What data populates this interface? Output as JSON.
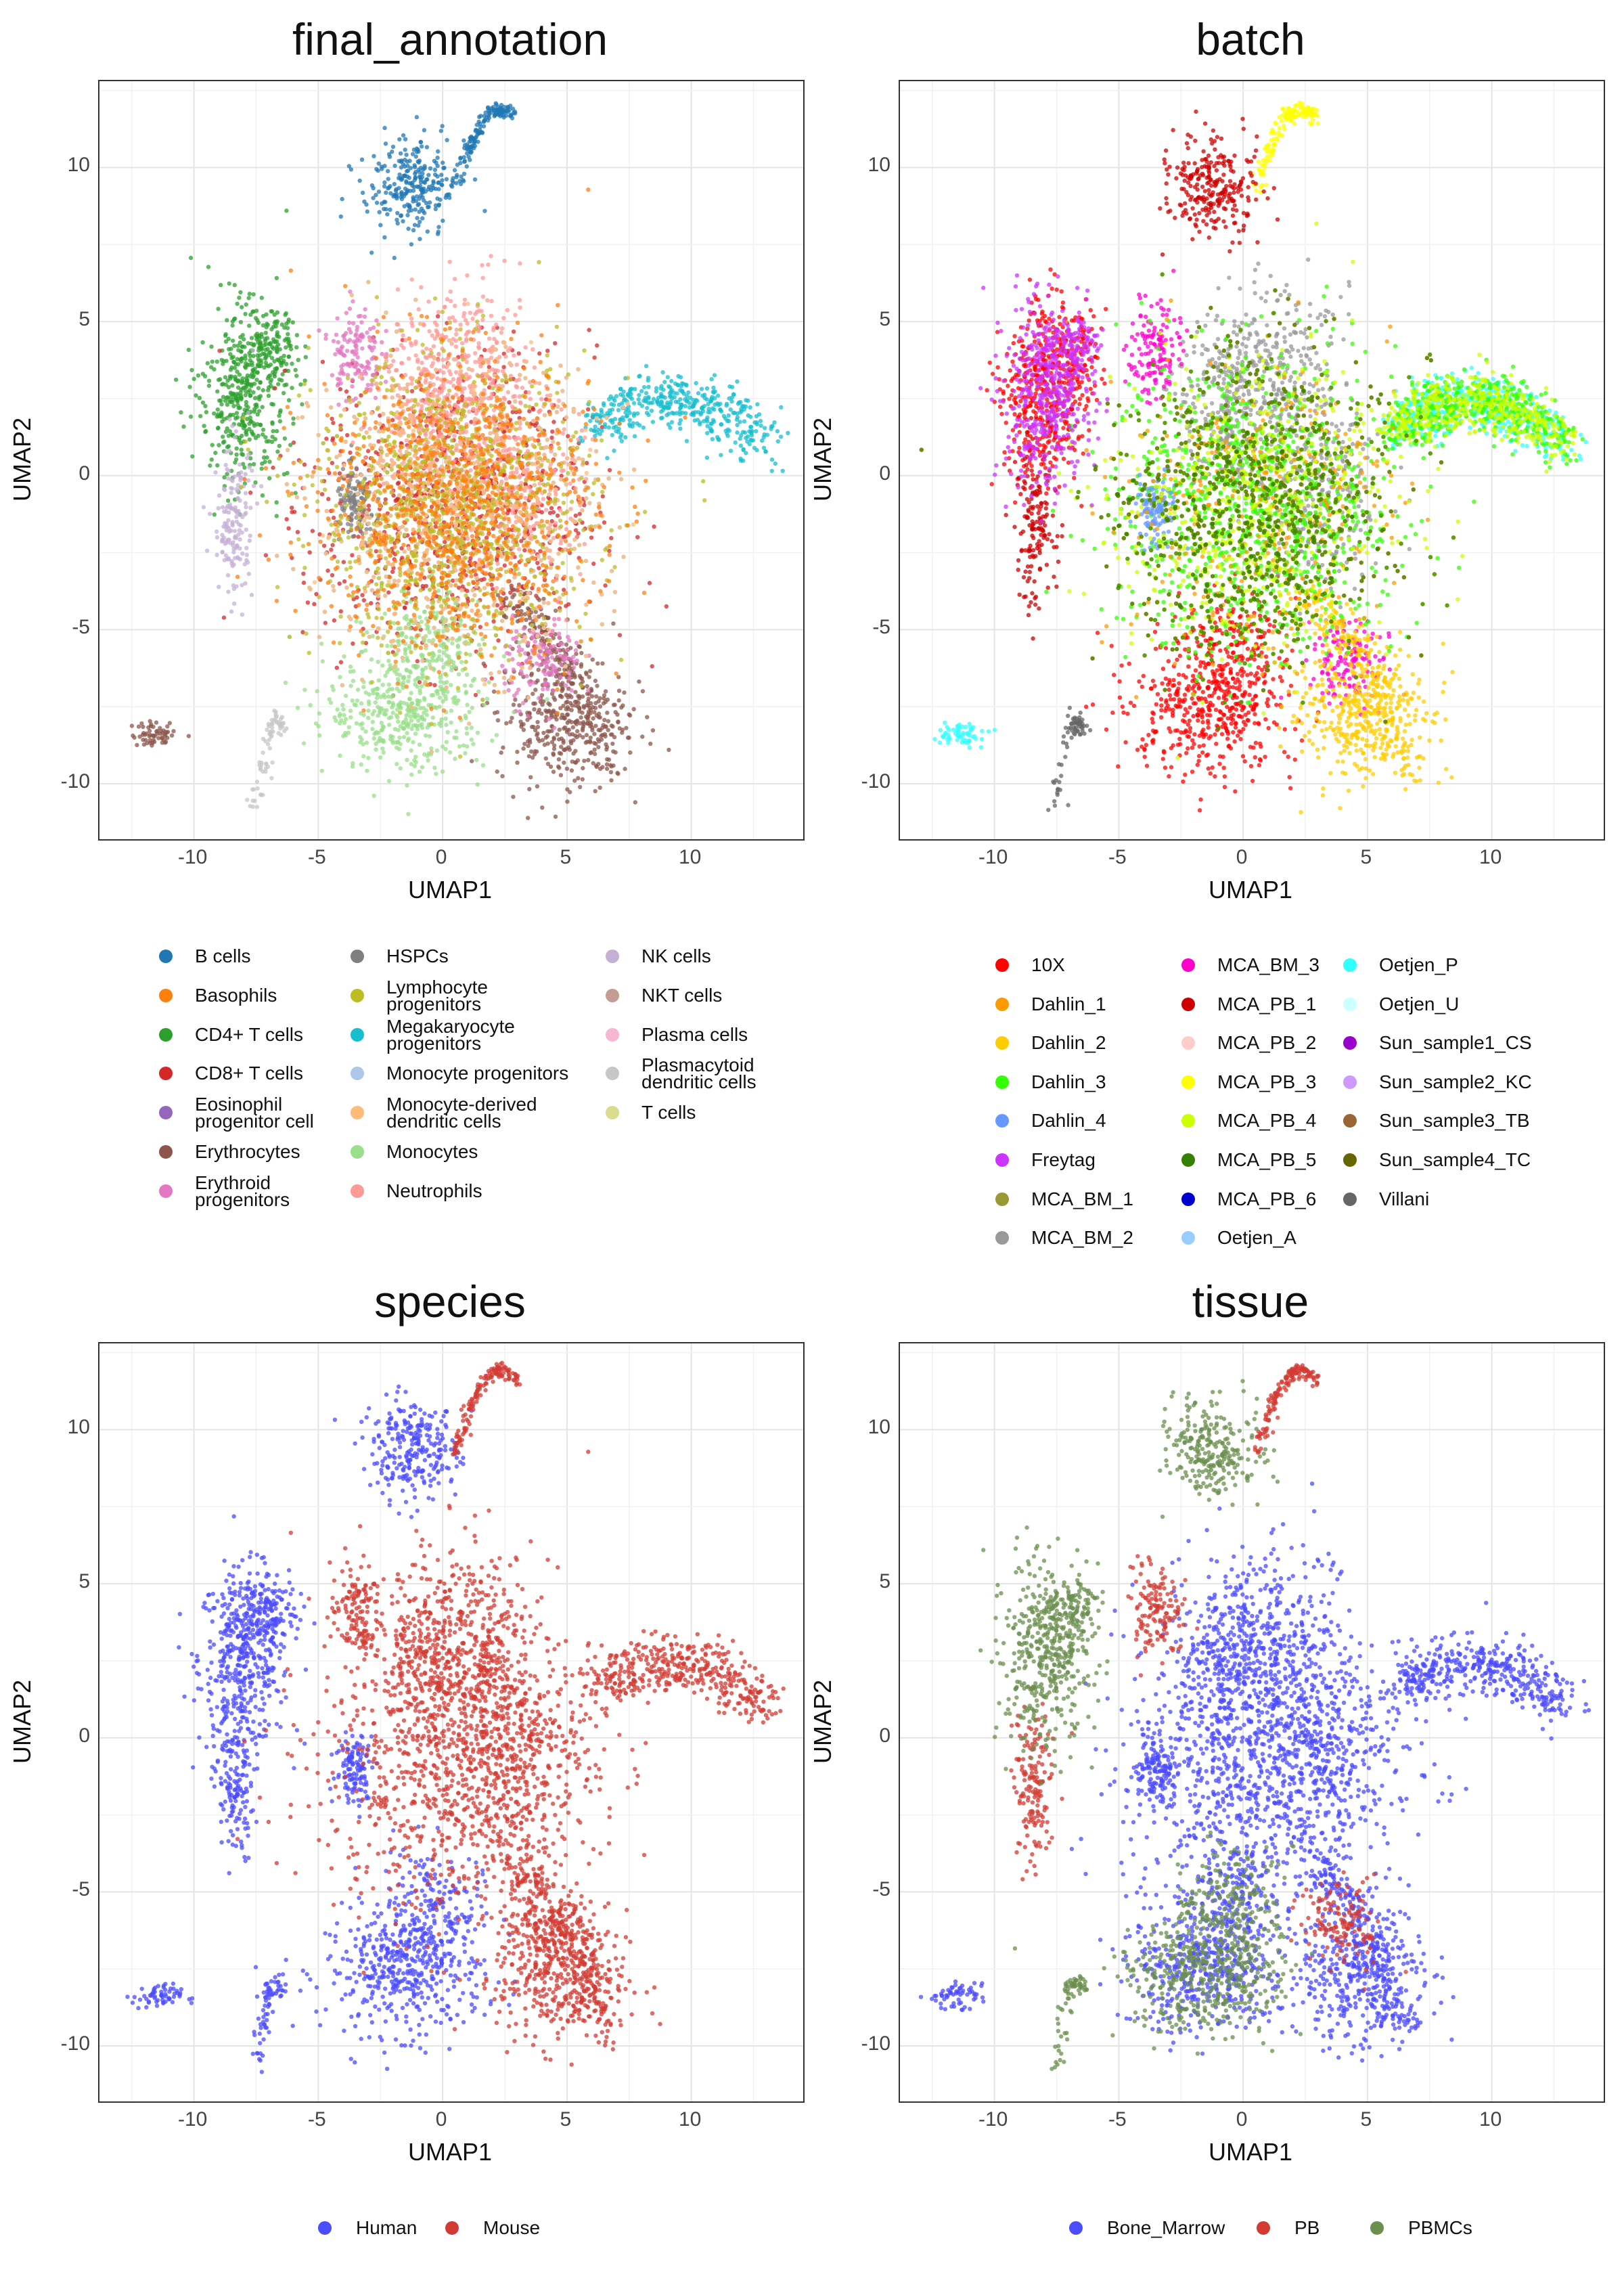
{
  "chart_data": [
    {
      "type": "scatter",
      "title": "final_annotation",
      "xlabel": "UMAP1",
      "ylabel": "UMAP2",
      "xticks": [
        "-10",
        "-5",
        "0",
        "5",
        "10"
      ],
      "yticks": [
        "10",
        "5",
        "0",
        "-5",
        "-10"
      ],
      "xlim": [
        -13.8,
        14.5
      ],
      "ylim": [
        -11.8,
        12.8
      ],
      "grid": true,
      "legend_position": "bottom",
      "series": [
        {
          "name": "B cells",
          "color": "#1f77b4"
        },
        {
          "name": "Basophils",
          "color": "#ff7f0e"
        },
        {
          "name": "CD4+ T cells",
          "color": "#2ca02c"
        },
        {
          "name": "CD8+ T cells",
          "color": "#d62728"
        },
        {
          "name": "Eosinophil progenitor cell",
          "color": "#9467bd"
        },
        {
          "name": "Erythrocytes",
          "color": "#8c564b"
        },
        {
          "name": "Erythroid progenitors",
          "color": "#e377c2"
        },
        {
          "name": "HSPCs",
          "color": "#7f7f7f"
        },
        {
          "name": "Lymphocyte progenitors",
          "color": "#bcbd22"
        },
        {
          "name": "Megakaryocyte progenitors",
          "color": "#17becf"
        },
        {
          "name": "Monocyte progenitors",
          "color": "#aec7e8"
        },
        {
          "name": "Monocyte-derived dendritic cells",
          "color": "#ffbb78"
        },
        {
          "name": "Monocytes",
          "color": "#98df8a"
        },
        {
          "name": "Neutrophils",
          "color": "#ff9896"
        },
        {
          "name": "NK cells",
          "color": "#c5b0d5"
        },
        {
          "name": "NKT cells",
          "color": "#c49c94"
        },
        {
          "name": "Plasma cells",
          "color": "#f7b6d2"
        },
        {
          "name": "Plasmacytoid dendritic cells",
          "color": "#c7c7c7"
        },
        {
          "name": "T cells",
          "color": "#dbdb8d"
        }
      ],
      "legend_labels": [
        [
          "B cells"
        ],
        [
          "Basophils"
        ],
        [
          "CD4+ T cells"
        ],
        [
          "CD8+ T cells"
        ],
        [
          "Eosinophil",
          "progenitor cell"
        ],
        [
          "Erythrocytes"
        ],
        [
          "Erythroid",
          "progenitors"
        ],
        [
          "HSPCs"
        ],
        [
          "Lymphocyte",
          "progenitors"
        ],
        [
          "Megakaryocyte",
          "progenitors"
        ],
        [
          "Monocyte progenitors"
        ],
        [
          "Monocyte-derived",
          "dendritic cells"
        ],
        [
          "Monocytes"
        ],
        [
          "Neutrophils"
        ],
        [
          "NK cells"
        ],
        [
          "NKT cells"
        ],
        [
          "Plasma cells"
        ],
        [
          "Plasmacytoid",
          "dendritic cells"
        ],
        [
          "T cells"
        ]
      ],
      "legend_columns": [
        7,
        7,
        5
      ]
    },
    {
      "type": "scatter",
      "title": "batch",
      "xlabel": "UMAP1",
      "ylabel": "UMAP2",
      "xticks": [
        "-10",
        "-5",
        "0",
        "5",
        "10"
      ],
      "yticks": [
        "10",
        "5",
        "0",
        "-5",
        "-10"
      ],
      "xlim": [
        -13.8,
        14.5
      ],
      "ylim": [
        -11.8,
        12.8
      ],
      "grid": true,
      "legend_position": "bottom",
      "series": [
        {
          "name": "10X",
          "color": "#ff0000"
        },
        {
          "name": "Dahlin_1",
          "color": "#ff9900"
        },
        {
          "name": "Dahlin_2",
          "color": "#ffcc00"
        },
        {
          "name": "Dahlin_3",
          "color": "#33ff00"
        },
        {
          "name": "Dahlin_4",
          "color": "#6699ff"
        },
        {
          "name": "Freytag",
          "color": "#cc33ff"
        },
        {
          "name": "MCA_BM_1",
          "color": "#999933"
        },
        {
          "name": "MCA_BM_2",
          "color": "#999999"
        },
        {
          "name": "MCA_BM_3",
          "color": "#ff00cc"
        },
        {
          "name": "MCA_PB_1",
          "color": "#cc0000"
        },
        {
          "name": "MCA_PB_2",
          "color": "#ffcccc"
        },
        {
          "name": "MCA_PB_3",
          "color": "#ffff00"
        },
        {
          "name": "MCA_PB_4",
          "color": "#ccff00"
        },
        {
          "name": "MCA_PB_5",
          "color": "#358000"
        },
        {
          "name": "MCA_PB_6",
          "color": "#0000cc"
        },
        {
          "name": "Oetjen_A",
          "color": "#99ccff"
        },
        {
          "name": "Oetjen_P",
          "color": "#33ffff"
        },
        {
          "name": "Oetjen_U",
          "color": "#ccffff"
        },
        {
          "name": "Sun_sample1_CS",
          "color": "#9900cc"
        },
        {
          "name": "Sun_sample2_KC",
          "color": "#cc99ff"
        },
        {
          "name": "Sun_sample3_TB",
          "color": "#996633"
        },
        {
          "name": "Sun_sample4_TC",
          "color": "#666600"
        },
        {
          "name": "Villani",
          "color": "#666666"
        }
      ],
      "legend_labels": [
        [
          "10X"
        ],
        [
          "Dahlin_1"
        ],
        [
          "Dahlin_2"
        ],
        [
          "Dahlin_3"
        ],
        [
          "Dahlin_4"
        ],
        [
          "Freytag"
        ],
        [
          "MCA_BM_1"
        ],
        [
          "MCA_BM_2"
        ],
        [
          "MCA_BM_3"
        ],
        [
          "MCA_PB_1"
        ],
        [
          "MCA_PB_2"
        ],
        [
          "MCA_PB_3"
        ],
        [
          "MCA_PB_4"
        ],
        [
          "MCA_PB_5"
        ],
        [
          "MCA_PB_6"
        ],
        [
          "Oetjen_A"
        ],
        [
          "Oetjen_P"
        ],
        [
          "Oetjen_U"
        ],
        [
          "Sun_sample1_CS"
        ],
        [
          "Sun_sample2_KC"
        ],
        [
          "Sun_sample3_TB"
        ],
        [
          "Sun_sample4_TC"
        ],
        [
          "Villani"
        ]
      ],
      "legend_columns": [
        8,
        8,
        7
      ]
    },
    {
      "type": "scatter",
      "title": "species",
      "xlabel": "UMAP1",
      "ylabel": "UMAP2",
      "xticks": [
        "-10",
        "-5",
        "0",
        "5",
        "10"
      ],
      "yticks": [
        "10",
        "5",
        "0",
        "-5",
        "-10"
      ],
      "xlim": [
        -13.8,
        14.5
      ],
      "ylim": [
        -11.8,
        12.8
      ],
      "grid": true,
      "legend_position": "bottom",
      "series": [
        {
          "name": "Human",
          "color": "#4b4bff"
        },
        {
          "name": "Mouse",
          "color": "#d13b33"
        }
      ],
      "legend_labels": [
        [
          "Human"
        ],
        [
          "Mouse"
        ]
      ],
      "legend_columns": [
        1,
        1
      ]
    },
    {
      "type": "scatter",
      "title": "tissue",
      "xlabel": "UMAP1",
      "ylabel": "UMAP2",
      "xticks": [
        "-10",
        "-5",
        "0",
        "5",
        "10"
      ],
      "yticks": [
        "10",
        "5",
        "0",
        "-5",
        "-10"
      ],
      "xlim": [
        -13.8,
        14.5
      ],
      "ylim": [
        -11.8,
        12.8
      ],
      "grid": true,
      "legend_position": "bottom",
      "series": [
        {
          "name": "Bone_Marrow",
          "color": "#4b4bff"
        },
        {
          "name": "PB",
          "color": "#d13b33"
        },
        {
          "name": "PBMCs",
          "color": "#6b8f4e"
        }
      ],
      "legend_labels": [
        [
          "Bone_Marrow"
        ],
        [
          "PB"
        ],
        [
          "PBMCs"
        ]
      ],
      "legend_columns": [
        1,
        1,
        1
      ]
    }
  ]
}
